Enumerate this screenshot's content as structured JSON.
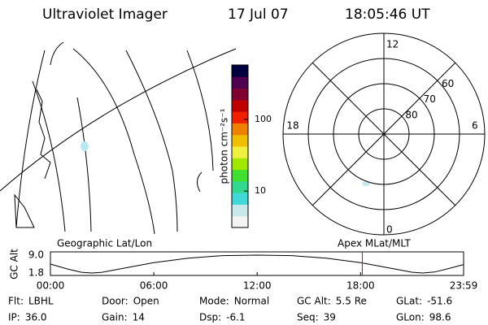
{
  "header": {
    "title": "Ultraviolet Imager",
    "date": "17 Jul 07",
    "time": "18:05:46 UT"
  },
  "map": {
    "label": "Geographic Lat/Lon"
  },
  "colorbar": {
    "label": "photon cm⁻²s⁻¹",
    "scale": "log",
    "ylim": [
      3.1,
      575
    ],
    "yticks": [
      10,
      100
    ],
    "colors": [
      "#f4f4f4",
      "#c8e8ec",
      "#40d8d8",
      "#30d890",
      "#40e030",
      "#a0e800",
      "#f0f040",
      "#f0c000",
      "#f08000",
      "#f02000",
      "#c00000",
      "#800030",
      "#500050",
      "#000040"
    ]
  },
  "polar": {
    "label": "Apex MLat/MLT",
    "mlt_labels": [
      12,
      18,
      6,
      0
    ],
    "lat_labels": [
      80,
      70,
      60
    ]
  },
  "altitude": {
    "type": "line",
    "ylabel": "GC Alt",
    "ylim": [
      1.8,
      9.0
    ],
    "yticks": [
      1.8,
      {
        "value": 9.0,
        "label": "9.0"
      }
    ],
    "xlim": [
      0,
      23.98
    ],
    "xticks": [
      {
        "value": 0,
        "label": "00:00"
      },
      {
        "value": 6,
        "label": "06:00"
      },
      {
        "value": 12,
        "label": "12:00"
      },
      {
        "value": 18,
        "label": "18:00"
      },
      {
        "value": 23.98,
        "label": "23:59"
      }
    ],
    "x": [
      0,
      1,
      1.8,
      2.4,
      3,
      4,
      6,
      8,
      10,
      12,
      14,
      16,
      18,
      20,
      21,
      21.6,
      22.3,
      23,
      23.98
    ],
    "values": [
      5.4,
      3.4,
      2.1,
      1.8,
      2.1,
      3.4,
      6.0,
      7.8,
      8.8,
      9.0,
      8.8,
      7.8,
      6.0,
      3.4,
      2.1,
      1.8,
      2.2,
      3.4,
      5.2
    ],
    "color": "#000000",
    "marker": 18.1,
    "marker_color": "#e00000"
  },
  "status": [
    [
      {
        "label": "Flt:",
        "value": "LBHL"
      },
      {
        "label": "Door:",
        "value": "Open"
      },
      {
        "label": "Mode:",
        "value": "Normal"
      },
      {
        "label": "GC Alt:",
        "value": "5.5 Re"
      },
      {
        "label": "GLat:",
        "value": "-51.6"
      }
    ],
    [
      {
        "label": "IP:",
        "value": "36.0"
      },
      {
        "label": "Gain:",
        "value": "14"
      },
      {
        "label": "Dsp:",
        "value": "-6.1"
      },
      {
        "label": "Seq:",
        "value": "39"
      },
      {
        "label": "GLon:",
        "value": "98.6"
      }
    ]
  ]
}
